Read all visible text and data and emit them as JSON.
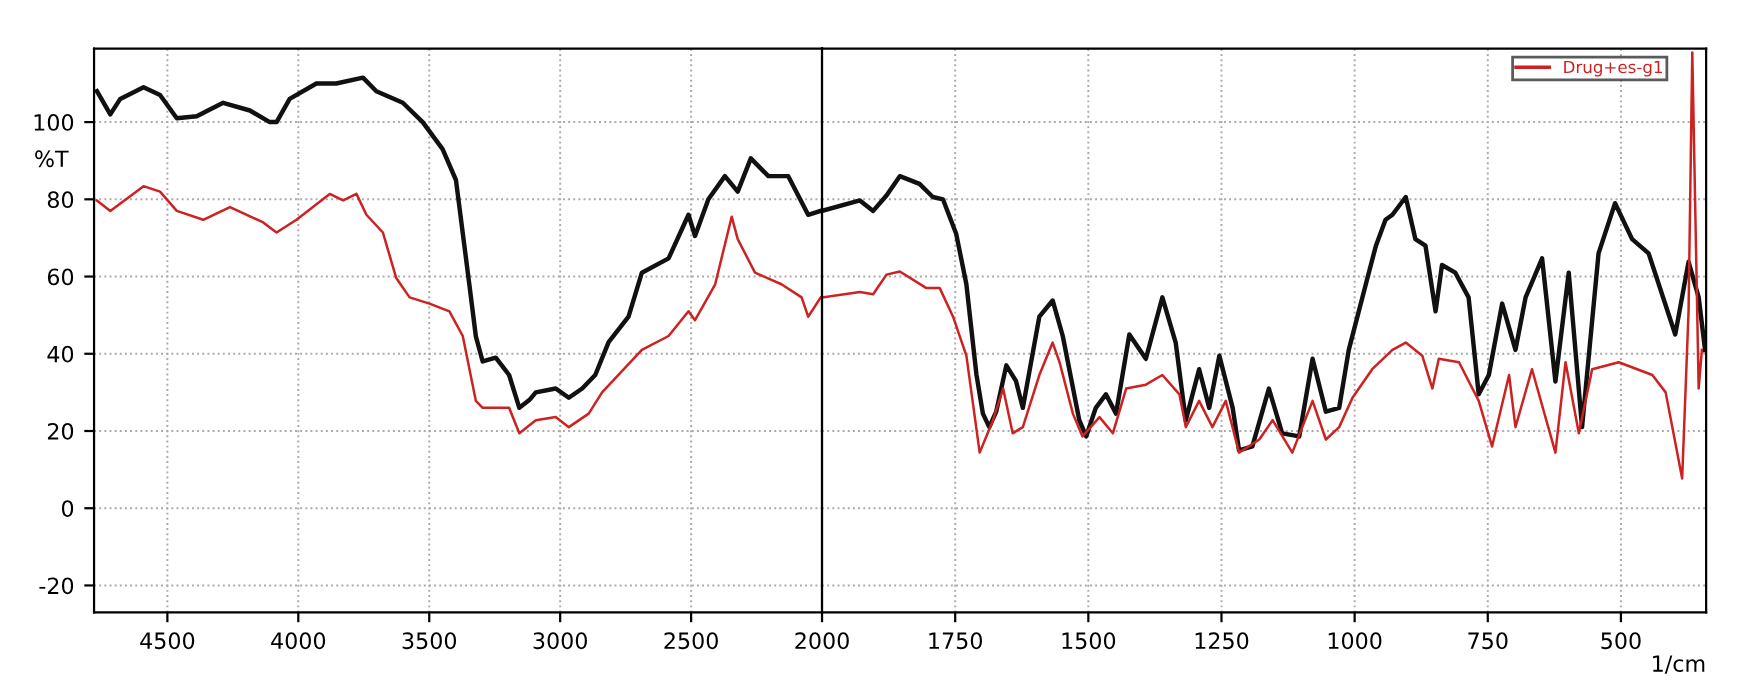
{
  "chart_data": [
    {
      "type": "line",
      "ylabel": "%T",
      "xlim": [
        4780,
        2000
      ],
      "ylim": [
        -27,
        119
      ],
      "xticks": [
        4500,
        4000,
        3500,
        3000,
        2500,
        2000
      ],
      "yticks": [
        -20,
        0,
        20,
        40,
        60,
        80,
        100
      ],
      "grid": true,
      "legend": false,
      "line_style": "solid",
      "marker": "none",
      "series": [
        {
          "color": "#111111",
          "x": [
            4769,
            4718,
            4680,
            4591,
            4528,
            4464,
            4388,
            4287,
            4185,
            4109,
            4083,
            4033,
            3931,
            3855,
            3753,
            3702,
            3601,
            3525,
            3449,
            3398,
            3347,
            3322,
            3296,
            3246,
            3195,
            3156,
            3118,
            3093,
            3017,
            2967,
            2916,
            2866,
            2815,
            2739,
            2688,
            2586,
            2510,
            2485,
            2434,
            2371,
            2322,
            2272,
            2205,
            2129,
            2053,
            2005
          ],
          "values": [
            108,
            102,
            106,
            109,
            107,
            101,
            101.5,
            105,
            103,
            100,
            100,
            106,
            110,
            110,
            111.5,
            108,
            105,
            100,
            93,
            85,
            58,
            44.5,
            38,
            39,
            34.5,
            26,
            28,
            30,
            31,
            28.6,
            31,
            34.5,
            43,
            49.6,
            61,
            64.7,
            76,
            70.5,
            80,
            86,
            82,
            90.6,
            86,
            86,
            76,
            77
          ]
        },
        {
          "color": "#cc2222",
          "x": [
            4769,
            4718,
            4591,
            4528,
            4464,
            4363,
            4261,
            4134,
            4083,
            4007,
            3880,
            3829,
            3778,
            3740,
            3677,
            3626,
            3575,
            3499,
            3423,
            3372,
            3322,
            3296,
            3195,
            3156,
            3093,
            3017,
            2967,
            2891,
            2840,
            2688,
            2586,
            2510,
            2485,
            2408,
            2345,
            2322,
            2256,
            2155,
            2078,
            2053,
            2005
          ],
          "values": [
            79.7,
            77,
            83.4,
            82,
            77,
            74.7,
            78,
            74,
            71.4,
            74.7,
            81.4,
            79.7,
            81.4,
            76,
            71.4,
            59.6,
            54.6,
            53,
            51,
            44.6,
            27.8,
            26,
            26,
            19.4,
            22.8,
            23.6,
            21,
            24.5,
            30,
            41,
            44.6,
            51,
            48.7,
            58,
            75.5,
            69.7,
            61,
            58,
            54.6,
            49.6,
            54.6
          ]
        }
      ]
    },
    {
      "type": "line",
      "xlabel": "1/cm",
      "xlim": [
        2000,
        340
      ],
      "ylim": [
        -27,
        119
      ],
      "xticks": [
        1750,
        1500,
        1250,
        1000,
        750,
        500
      ],
      "yticks": [
        -20,
        0,
        20,
        40,
        60,
        80,
        100
      ],
      "tick_labels": "x",
      "grid": true,
      "legend": "top right",
      "line_style": "solid",
      "marker": "none",
      "series": [
        {
          "color": "#111111",
          "x": [
            2000,
            1929,
            1904,
            1879,
            1854,
            1817,
            1792,
            1773,
            1748,
            1729,
            1710,
            1698,
            1686,
            1673,
            1654,
            1636,
            1623,
            1592,
            1567,
            1548,
            1517,
            1504,
            1486,
            1467,
            1448,
            1423,
            1392,
            1361,
            1336,
            1317,
            1292,
            1273,
            1254,
            1229,
            1217,
            1192,
            1161,
            1136,
            1104,
            1079,
            1054,
            1029,
            1011,
            979,
            960,
            942,
            929,
            904,
            886,
            867,
            848,
            836,
            811,
            786,
            767,
            748,
            723,
            698,
            679,
            648,
            623,
            598,
            573,
            542,
            511,
            479,
            448,
            398,
            373,
            354,
            342
          ],
          "values": [
            77,
            79.7,
            77,
            81,
            86,
            84,
            80.6,
            80,
            71,
            58,
            34.5,
            24.5,
            21,
            25,
            37,
            33,
            26,
            49.6,
            53.8,
            44.6,
            22.8,
            18.6,
            26,
            29.5,
            24.5,
            45,
            38.7,
            54.6,
            42.9,
            22.8,
            36,
            26,
            39.5,
            26,
            15,
            16,
            31,
            19.4,
            18.6,
            38.7,
            25,
            26,
            41,
            58,
            68,
            74.7,
            76,
            80.6,
            69.7,
            68,
            51,
            63,
            61,
            54.6,
            29.5,
            34.5,
            53,
            41,
            54.6,
            64.7,
            32.8,
            61,
            21,
            66,
            79,
            69.7,
            66,
            45,
            63.8,
            54.6,
            41
          ]
        },
        {
          "name": "Drug+es-g1",
          "color": "#cc2222",
          "x": [
            2000,
            1929,
            1904,
            1879,
            1854,
            1804,
            1779,
            1754,
            1729,
            1704,
            1679,
            1660,
            1642,
            1623,
            1592,
            1567,
            1554,
            1529,
            1511,
            1479,
            1454,
            1429,
            1392,
            1361,
            1329,
            1317,
            1292,
            1267,
            1242,
            1217,
            1179,
            1154,
            1117,
            1079,
            1054,
            1029,
            1004,
            967,
            929,
            904,
            873,
            854,
            842,
            804,
            767,
            742,
            710,
            698,
            667,
            623,
            604,
            579,
            554,
            504,
            441,
            416,
            385,
            373,
            366,
            354,
            348
          ],
          "values": [
            54.6,
            56,
            55.4,
            60.5,
            61.3,
            57,
            57,
            49.6,
            39.5,
            14.4,
            22.8,
            31,
            19.4,
            21,
            34.5,
            42.9,
            37.8,
            24.5,
            18.6,
            23.6,
            19.4,
            31,
            32,
            34.5,
            29.5,
            21,
            27.8,
            21,
            27.8,
            14.4,
            17.8,
            22.8,
            14.4,
            27.8,
            17.8,
            21,
            28.6,
            36,
            41,
            42.9,
            39.5,
            31,
            38.7,
            37.8,
            27.8,
            16,
            34.5,
            21,
            36,
            14.4,
            37.8,
            19.4,
            36,
            37.8,
            34.5,
            30,
            7.7,
            51,
            118,
            31,
            41
          ]
        }
      ]
    }
  ]
}
